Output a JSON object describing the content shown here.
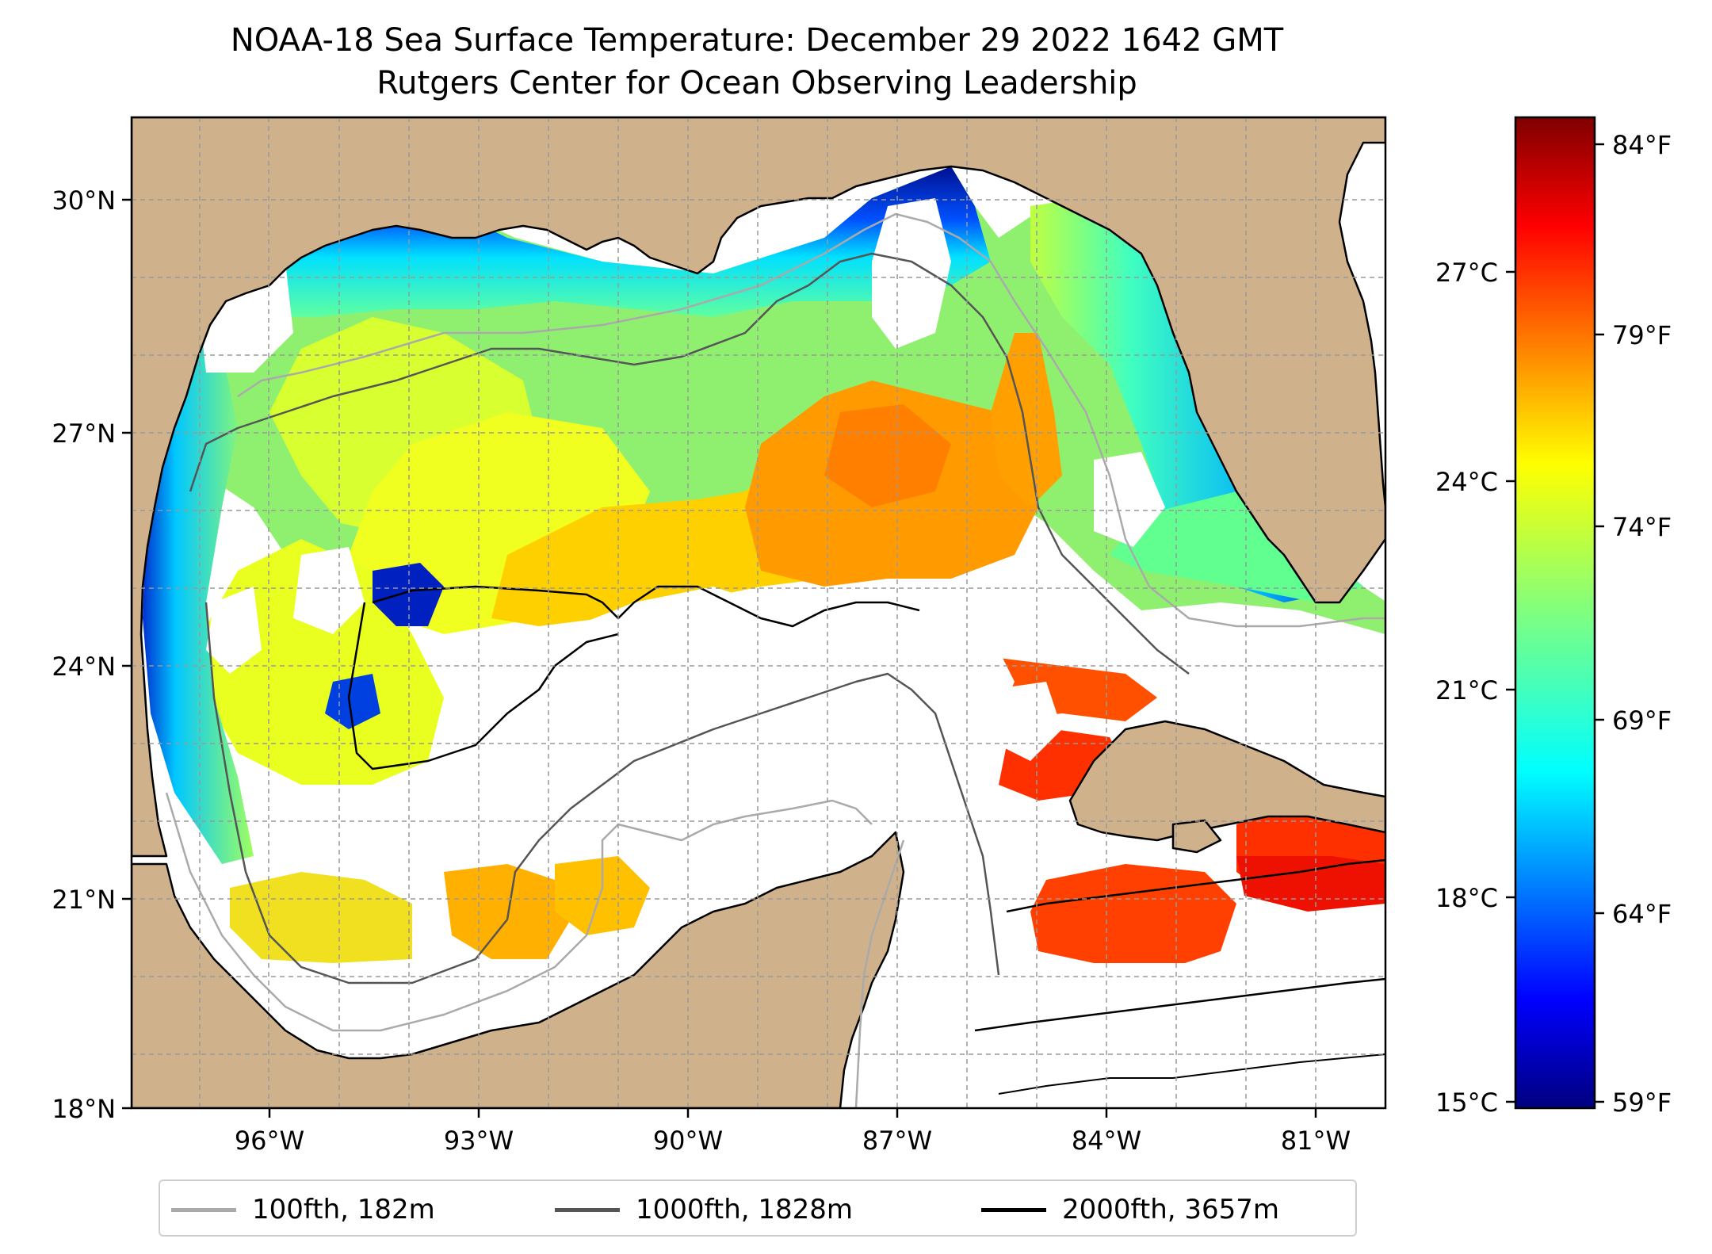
{
  "title": "NOAA-18 Sea Surface Temperature: December 29 2022 1642 GMT",
  "subtitle": "Rutgers Center for Ocean Observing Leadership",
  "map": {
    "region": "Gulf of Mexico",
    "lon_range": [
      -98.0,
      -80.3
    ],
    "lat_range": [
      18.0,
      31.0
    ],
    "lat_ticks": [
      "30°N",
      "27°N",
      "24°N",
      "21°N",
      "18°N"
    ],
    "lon_ticks": [
      "96°W",
      "93°W",
      "90°W",
      "87°W",
      "84°W",
      "81°W"
    ],
    "grid": true,
    "land_color": "#cfb18b",
    "no_data_color": "#ffffff"
  },
  "colorbar": {
    "colormap": "jet",
    "celsius_ticks": [
      "27°C",
      "24°C",
      "21°C",
      "18°C",
      "15°C"
    ],
    "fahrenheit_ticks": [
      "84°F",
      "79°F",
      "74°F",
      "69°F",
      "64°F",
      "59°F"
    ],
    "range_celsius": [
      15,
      29
    ]
  },
  "legend": {
    "placement": "bottom-center",
    "items": [
      {
        "label": "100fth, 182m",
        "color": "#aaaaaa"
      },
      {
        "label": "1000fth, 1828m",
        "color": "#555555"
      },
      {
        "label": "2000fth, 3657m",
        "color": "#000000"
      }
    ]
  }
}
